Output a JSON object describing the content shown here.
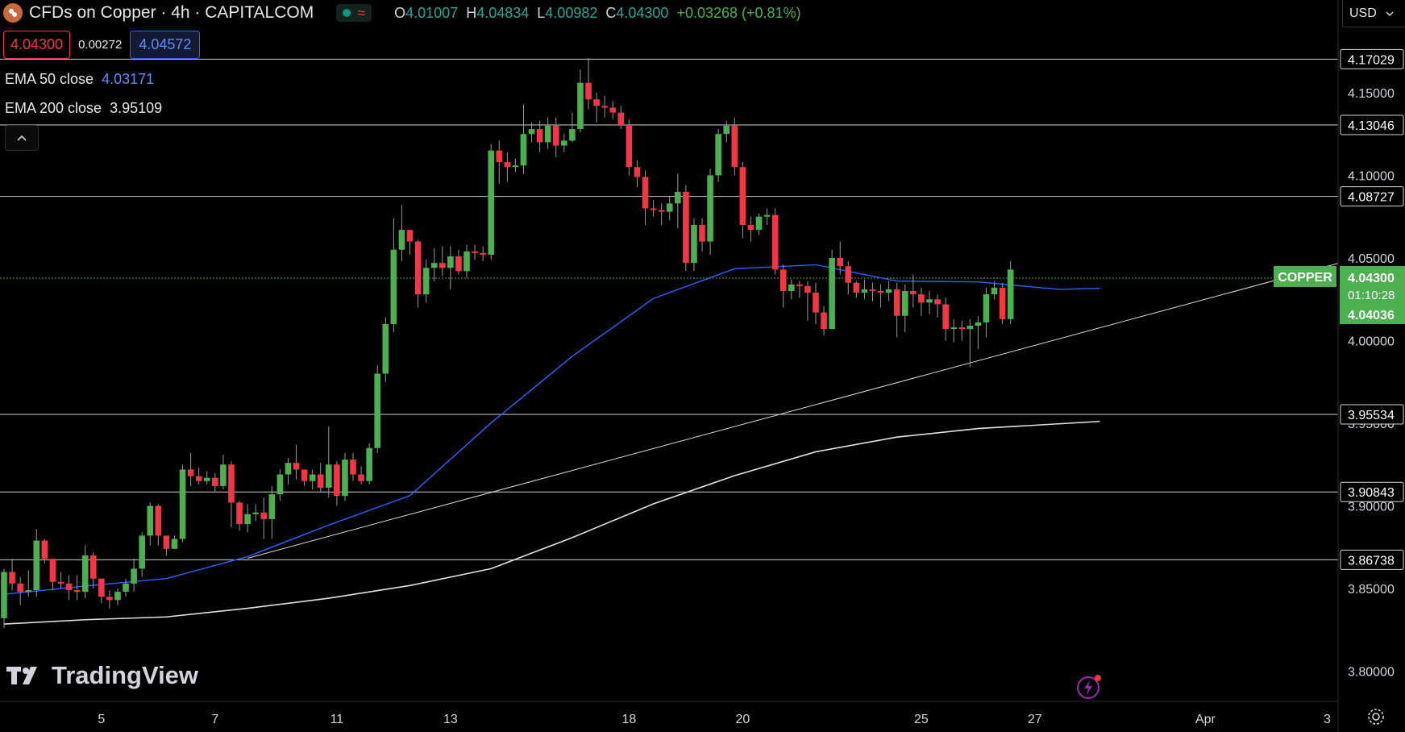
{
  "header": {
    "symbol_title": "CFDs on Copper · 4h · CAPITALCOM",
    "ohlc": {
      "o_label": "O",
      "o": "4.01007",
      "h_label": "H",
      "h": "4.04834",
      "l_label": "L",
      "l": "4.00982",
      "c_label": "C",
      "c": "4.04300",
      "change": "+0.03268 (+0.81%)"
    },
    "sell_price": "4.04300",
    "spread": "0.00272",
    "buy_price": "4.04572",
    "currency": "USD"
  },
  "indicators": {
    "ema50_label": "EMA 50 close",
    "ema50_value": "4.03171",
    "ema200_label": "EMA 200 close",
    "ema200_value": "3.95109"
  },
  "price_axis": {
    "ticks": [
      "4.15000",
      "4.10000",
      "4.05000",
      "4.00000",
      "3.95000",
      "3.90000",
      "3.85000",
      "3.80000"
    ],
    "level_tags": [
      "4.17029",
      "4.13046",
      "4.08727",
      "3.95534",
      "3.90843",
      "3.86738"
    ],
    "copper_tag": "COPPER",
    "last_price": "4.04300",
    "countdown": "01:10:28",
    "trend_value": "4.04036"
  },
  "time_axis": {
    "labels": [
      "5",
      "7",
      "11",
      "13",
      "18",
      "20",
      "25",
      "27",
      "Apr",
      "3"
    ]
  },
  "branding": {
    "logo": "TradingView"
  },
  "colors": {
    "bull": "#4caf50",
    "bear": "#f23645",
    "ema50": "#2962ff",
    "ema200": "#e0e0e0",
    "accent": "#4caf50"
  },
  "chart_data": {
    "type": "candlestick",
    "title": "CFDs on Copper · 4h · CAPITALCOM",
    "ylim": [
      3.785,
      4.2
    ],
    "horizontal_levels": [
      4.17029,
      4.13046,
      4.08727,
      3.95534,
      3.90843,
      3.86738
    ],
    "trendline": {
      "start": {
        "bar": 30,
        "price": 3.8683
      },
      "end": {
        "bar": 161,
        "price": 4.0423
      }
    },
    "series": [
      {
        "name": "EMA 50 close",
        "points": [
          [
            0,
            3.8465
          ],
          [
            10,
            3.8515
          ],
          [
            20,
            3.856
          ],
          [
            30,
            3.8693
          ],
          [
            40,
            3.8884
          ],
          [
            50,
            3.9062
          ],
          [
            60,
            3.9502
          ],
          [
            70,
            3.9905
          ],
          [
            80,
            4.0255
          ],
          [
            90,
            4.0435
          ],
          [
            100,
            4.0459
          ],
          [
            110,
            4.036
          ],
          [
            120,
            4.0355
          ],
          [
            130,
            4.031
          ],
          [
            135,
            4.0317
          ]
        ]
      },
      {
        "name": "EMA 200 close",
        "points": [
          [
            0,
            3.8285
          ],
          [
            10,
            3.8311
          ],
          [
            20,
            3.8328
          ],
          [
            30,
            3.838
          ],
          [
            40,
            3.8441
          ],
          [
            50,
            3.8518
          ],
          [
            60,
            3.862
          ],
          [
            70,
            3.8808
          ],
          [
            80,
            3.9012
          ],
          [
            90,
            3.9183
          ],
          [
            100,
            3.9327
          ],
          [
            110,
            3.9416
          ],
          [
            120,
            3.9468
          ],
          [
            135,
            3.9511
          ]
        ]
      }
    ],
    "candles": [
      [
        3.832,
        3.86,
        3.832,
        3.862,
        3.826
      ],
      [
        3.86,
        3.853,
        3.869,
        3.868,
        3.849
      ],
      [
        3.853,
        3.848,
        3.853,
        3.857,
        3.84
      ],
      [
        3.848,
        3.849,
        3.858,
        3.861,
        3.845
      ],
      [
        3.849,
        3.879,
        3.882,
        3.886,
        3.845
      ],
      [
        3.879,
        3.868,
        3.878,
        3.88,
        3.865
      ],
      [
        3.868,
        3.854,
        3.863,
        3.866,
        3.849
      ],
      [
        3.854,
        3.853,
        3.855,
        3.86,
        3.85
      ],
      [
        3.853,
        3.849,
        3.853,
        3.858,
        3.843
      ],
      [
        3.849,
        3.848,
        3.853,
        3.858,
        3.843
      ],
      [
        3.848,
        3.87,
        3.87,
        3.876,
        3.844
      ],
      [
        3.87,
        3.856,
        3.87,
        3.872,
        3.85
      ],
      [
        3.856,
        3.845,
        3.85,
        3.855,
        3.841
      ],
      [
        3.845,
        3.843,
        3.847,
        3.849,
        3.838
      ],
      [
        3.843,
        3.848,
        3.848,
        3.85,
        3.84
      ],
      [
        3.848,
        3.853,
        3.853,
        3.856,
        3.845
      ],
      [
        3.853,
        3.862,
        3.862,
        3.868,
        3.848
      ],
      [
        3.862,
        3.882,
        3.882,
        3.884,
        3.857
      ],
      [
        3.882,
        3.9,
        3.9,
        3.902,
        3.876
      ],
      [
        3.9,
        3.882,
        3.898,
        3.901,
        3.876
      ],
      [
        3.882,
        3.874,
        3.877,
        3.881,
        3.87
      ],
      [
        3.874,
        3.88,
        3.88,
        3.882,
        3.874
      ],
      [
        3.88,
        3.922,
        3.922,
        3.925,
        3.878
      ],
      [
        3.922,
        3.918,
        3.922,
        3.932,
        3.912
      ],
      [
        3.918,
        3.915,
        3.92,
        3.923,
        3.913
      ],
      [
        3.915,
        3.917,
        3.918,
        3.921,
        3.913
      ],
      [
        3.917,
        3.912,
        3.917,
        3.92,
        3.908
      ],
      [
        3.912,
        3.925,
        3.928,
        3.931,
        3.91
      ],
      [
        3.925,
        3.902,
        3.925,
        3.927,
        3.887
      ],
      [
        3.902,
        3.889,
        3.897,
        3.903,
        3.885
      ],
      [
        3.889,
        3.895,
        3.897,
        3.901,
        3.884
      ],
      [
        3.895,
        3.896,
        3.897,
        3.901,
        3.891
      ],
      [
        3.896,
        3.892,
        3.896,
        3.905,
        3.88
      ],
      [
        3.892,
        3.907,
        3.907,
        3.912,
        3.88
      ],
      [
        3.907,
        3.919,
        3.919,
        3.922,
        3.903
      ],
      [
        3.919,
        3.926,
        3.926,
        3.929,
        3.913
      ],
      [
        3.926,
        3.922,
        3.929,
        3.937,
        3.916
      ],
      [
        3.922,
        3.915,
        3.919,
        3.921,
        3.912
      ],
      [
        3.915,
        3.919,
        3.92,
        3.922,
        3.91
      ],
      [
        3.919,
        3.911,
        3.921,
        3.926,
        3.908
      ],
      [
        3.911,
        3.925,
        3.925,
        3.948,
        3.905
      ],
      [
        3.925,
        3.906,
        3.925,
        3.927,
        3.9
      ],
      [
        3.906,
        3.928,
        3.928,
        3.932,
        3.903
      ],
      [
        3.928,
        3.919,
        3.93,
        3.932,
        3.915
      ],
      [
        3.919,
        3.915,
        3.922,
        3.924,
        3.913
      ],
      [
        3.915,
        3.935,
        3.935,
        3.938,
        3.913
      ],
      [
        3.935,
        3.98,
        3.98,
        3.985,
        3.932
      ],
      [
        3.98,
        4.01,
        4.01,
        4.014,
        3.975
      ],
      [
        4.01,
        4.055,
        4.055,
        4.074,
        4.005
      ],
      [
        4.055,
        4.067,
        4.067,
        4.082,
        4.048
      ],
      [
        4.067,
        4.06,
        4.063,
        4.067,
        4.052
      ],
      [
        4.06,
        4.028,
        4.059,
        4.061,
        4.02
      ],
      [
        4.028,
        4.044,
        4.044,
        4.049,
        4.023
      ],
      [
        4.044,
        4.047,
        4.051,
        4.056,
        4.036
      ],
      [
        4.047,
        4.044,
        4.052,
        4.057,
        4.039
      ],
      [
        4.044,
        4.051,
        4.051,
        4.057,
        4.031
      ],
      [
        4.051,
        4.042,
        4.051,
        4.055,
        4.04
      ],
      [
        4.042,
        4.054,
        4.054,
        4.058,
        4.038
      ],
      [
        4.054,
        4.053,
        4.055,
        4.058,
        4.049
      ],
      [
        4.053,
        4.052,
        4.054,
        4.057,
        4.048
      ],
      [
        4.052,
        4.115,
        4.116,
        4.119,
        4.049
      ],
      [
        4.115,
        4.108,
        4.116,
        4.121,
        4.095
      ],
      [
        4.108,
        4.105,
        4.108,
        4.114,
        4.096
      ],
      [
        4.105,
        4.106,
        4.108,
        4.11,
        4.102
      ],
      [
        4.106,
        4.125,
        4.126,
        4.143,
        4.101
      ],
      [
        4.125,
        4.128,
        4.128,
        4.132,
        4.12
      ],
      [
        4.128,
        4.12,
        4.128,
        4.133,
        4.114
      ],
      [
        4.12,
        4.13,
        4.13,
        4.135,
        4.116
      ],
      [
        4.13,
        4.118,
        4.13,
        4.135,
        4.111
      ],
      [
        4.118,
        4.121,
        4.121,
        4.125,
        4.114
      ],
      [
        4.121,
        4.128,
        4.128,
        4.138,
        4.12
      ],
      [
        4.128,
        4.156,
        4.156,
        4.164,
        4.126
      ],
      [
        4.156,
        4.146,
        4.156,
        4.171,
        4.14
      ],
      [
        4.146,
        4.142,
        4.146,
        4.15,
        4.132
      ],
      [
        4.142,
        4.141,
        4.145,
        4.148,
        4.135
      ],
      [
        4.141,
        4.138,
        4.143,
        4.145,
        4.134
      ],
      [
        4.138,
        4.13,
        4.138,
        4.142,
        4.128
      ],
      [
        4.13,
        4.105,
        4.13,
        4.134,
        4.1
      ],
      [
        4.105,
        4.099,
        4.105,
        4.109,
        4.093
      ],
      [
        4.099,
        4.08,
        4.099,
        4.103,
        4.07
      ],
      [
        4.08,
        4.079,
        4.081,
        4.085,
        4.075
      ],
      [
        4.079,
        4.078,
        4.08,
        4.083,
        4.07
      ],
      [
        4.078,
        4.083,
        4.083,
        4.087,
        4.073
      ],
      [
        4.083,
        4.09,
        4.09,
        4.101,
        4.068
      ],
      [
        4.09,
        4.047,
        4.09,
        4.094,
        4.042
      ],
      [
        4.047,
        4.07,
        4.07,
        4.074,
        4.042
      ],
      [
        4.07,
        4.06,
        4.07,
        4.074,
        4.054
      ],
      [
        4.06,
        4.1,
        4.1,
        4.104,
        4.052
      ],
      [
        4.1,
        4.125,
        4.125,
        4.128,
        4.096
      ],
      [
        4.125,
        4.13,
        4.13,
        4.133,
        4.12
      ],
      [
        4.13,
        4.105,
        4.13,
        4.135,
        4.1
      ],
      [
        4.105,
        4.07,
        4.105,
        4.108,
        4.062
      ],
      [
        4.07,
        4.067,
        4.07,
        4.075,
        4.06
      ],
      [
        4.067,
        4.075,
        4.075,
        4.077,
        4.064
      ],
      [
        4.075,
        4.076,
        4.077,
        4.08,
        4.07
      ],
      [
        4.076,
        4.043,
        4.076,
        4.08,
        4.04
      ],
      [
        4.043,
        4.03,
        4.043,
        4.046,
        4.02
      ],
      [
        4.03,
        4.034,
        4.034,
        4.037,
        4.025
      ],
      [
        4.034,
        4.033,
        4.034,
        4.036,
        4.026
      ],
      [
        4.033,
        4.029,
        4.033,
        4.036,
        4.012
      ],
      [
        4.029,
        4.017,
        4.029,
        4.035,
        4.01
      ],
      [
        4.017,
        4.007,
        4.017,
        4.021,
        4.003
      ],
      [
        4.007,
        4.05,
        4.05,
        4.055,
        4.007
      ],
      [
        4.05,
        4.045,
        4.05,
        4.06,
        4.04
      ],
      [
        4.045,
        4.035,
        4.045,
        4.048,
        4.028
      ],
      [
        4.035,
        4.029,
        4.034,
        4.036,
        4.026
      ],
      [
        4.029,
        4.031,
        4.031,
        4.037,
        4.025
      ],
      [
        4.031,
        4.03,
        4.031,
        4.035,
        4.024
      ],
      [
        4.03,
        4.029,
        4.03,
        4.034,
        4.02
      ],
      [
        4.029,
        4.031,
        4.031,
        4.036,
        4.024
      ],
      [
        4.031,
        4.015,
        4.031,
        4.035,
        4.002
      ],
      [
        4.015,
        4.03,
        4.03,
        4.034,
        4.005
      ],
      [
        4.03,
        4.028,
        4.03,
        4.04,
        4.02
      ],
      [
        4.028,
        4.023,
        4.028,
        4.032,
        4.015
      ],
      [
        4.023,
        4.025,
        4.025,
        4.03,
        4.016
      ],
      [
        4.025,
        4.022,
        4.025,
        4.028,
        4.014
      ],
      [
        4.022,
        4.007,
        4.022,
        4.026,
        4.0
      ],
      [
        4.007,
        4.008,
        4.009,
        4.013,
        3.999
      ],
      [
        4.008,
        4.007,
        4.008,
        4.012,
        4.0
      ],
      [
        4.007,
        4.009,
        4.009,
        4.013,
        3.984
      ],
      [
        4.009,
        4.011,
        4.011,
        4.015,
        3.995
      ],
      [
        4.011,
        4.028,
        4.028,
        4.032,
        4.002
      ],
      [
        4.028,
        4.032,
        4.032,
        4.036,
        4.025
      ],
      [
        4.032,
        4.013,
        4.032,
        4.035,
        4.01
      ],
      [
        4.013,
        4.043,
        4.043,
        4.048,
        4.01
      ]
    ]
  }
}
